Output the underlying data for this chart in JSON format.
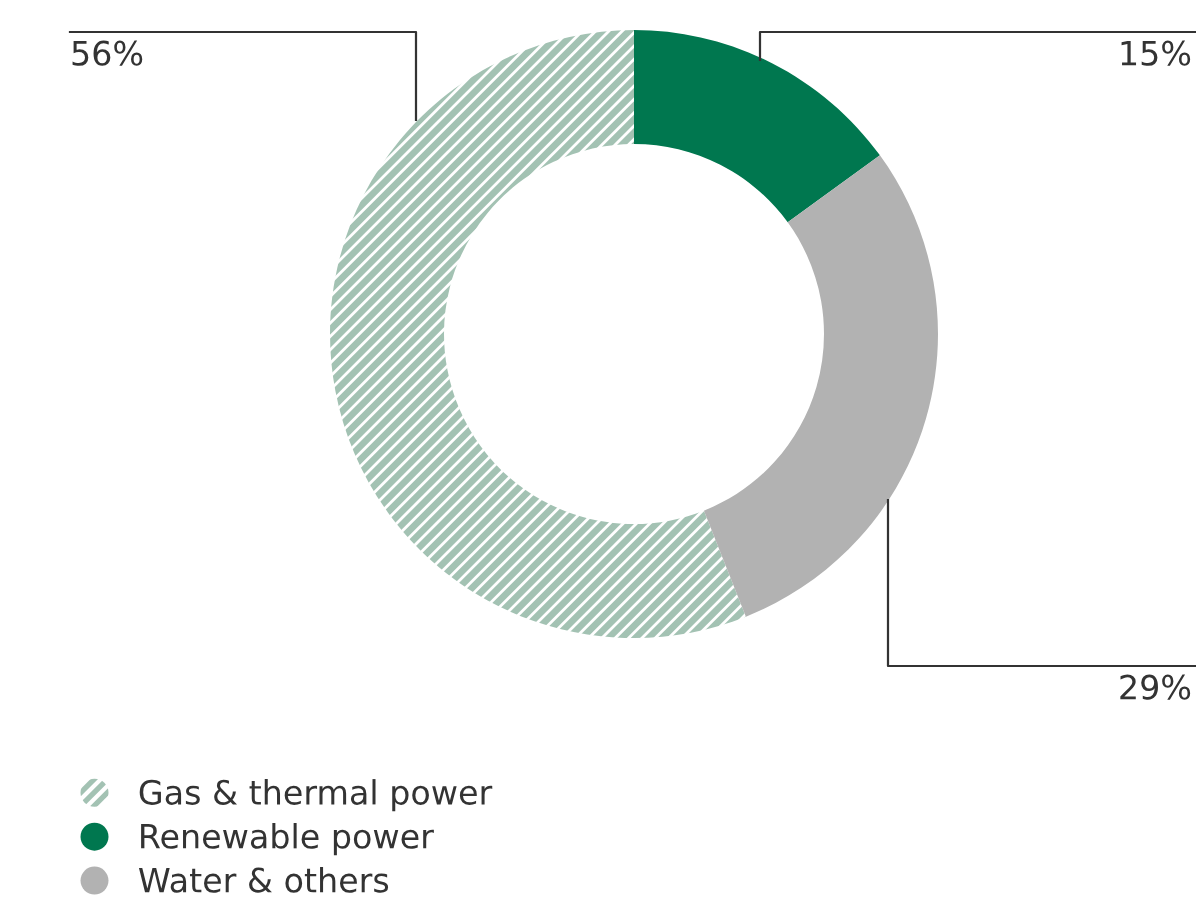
{
  "chart_data": {
    "type": "donut",
    "categories": [
      "Gas & thermal power",
      "Renewable power",
      "Water & others"
    ],
    "values": [
      56,
      15,
      29
    ],
    "colors": [
      "#a3c2b3",
      "#00774f",
      "#b2b2b2"
    ],
    "value_labels": [
      "56%",
      "15%",
      "29%"
    ],
    "legend": "bottom left"
  }
}
